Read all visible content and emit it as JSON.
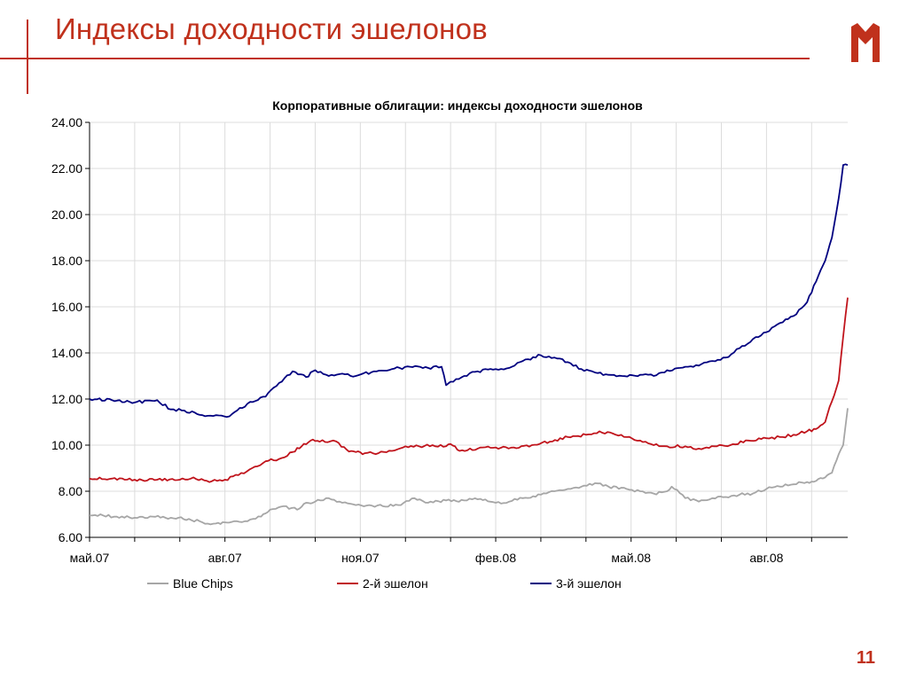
{
  "slide": {
    "title": "Индексы доходности эшелонов",
    "page_number": "11",
    "accent_color": "#c0311c",
    "logo": "m-logo-icon"
  },
  "chart_data": {
    "type": "line",
    "title": "Корпоративные облигации: индексы доходности эшелонов",
    "xlabel": "",
    "ylabel": "",
    "x_tick_labels": [
      "май.07",
      "авг.07",
      "ноя.07",
      "фев.08",
      "май.08",
      "авг.08"
    ],
    "y_tick_labels": [
      "6.00",
      "8.00",
      "10.00",
      "12.00",
      "14.00",
      "16.00",
      "18.00",
      "20.00",
      "22.00",
      "24.00"
    ],
    "ylim": [
      6,
      24
    ],
    "x_range_months": [
      0,
      16.8
    ],
    "grid": true,
    "legend_position": "bottom",
    "series": [
      {
        "name": "Blue Chips",
        "color": "#a6a6a6",
        "x": [
          0,
          0.3,
          0.6,
          1.0,
          1.4,
          1.8,
          2.2,
          2.5,
          2.8,
          3.0,
          3.2,
          3.5,
          3.8,
          4.0,
          4.3,
          4.6,
          4.8,
          5.0,
          5.3,
          5.6,
          5.9,
          6.2,
          6.5,
          6.9,
          7.2,
          7.5,
          7.9,
          8.3,
          8.6,
          9.0,
          9.3,
          9.6,
          10.0,
          10.3,
          10.6,
          10.9,
          11.2,
          11.5,
          11.9,
          12.2,
          12.5,
          12.8,
          12.9,
          13.2,
          13.5,
          13.8,
          14.1,
          14.4,
          14.7,
          15.0,
          15.3,
          15.6,
          15.9,
          16.1,
          16.3,
          16.45,
          16.6,
          16.7,
          16.8
        ],
        "values": [
          6.95,
          6.95,
          6.9,
          6.85,
          6.9,
          6.85,
          6.8,
          6.65,
          6.6,
          6.65,
          6.7,
          6.7,
          6.9,
          7.2,
          7.35,
          7.2,
          7.5,
          7.55,
          7.7,
          7.5,
          7.4,
          7.4,
          7.35,
          7.4,
          7.7,
          7.5,
          7.6,
          7.6,
          7.65,
          7.5,
          7.55,
          7.7,
          7.85,
          8.0,
          8.1,
          8.2,
          8.35,
          8.2,
          8.1,
          8.0,
          7.9,
          8.0,
          8.2,
          7.7,
          7.55,
          7.7,
          7.75,
          7.85,
          7.9,
          8.1,
          8.2,
          8.3,
          8.4,
          8.45,
          8.6,
          8.8,
          9.6,
          10.0,
          11.6
        ]
      },
      {
        "name": "2-й эшелон",
        "color": "#c0141c",
        "x": [
          0,
          0.5,
          1.0,
          1.5,
          2.0,
          2.3,
          2.6,
          3.0,
          3.3,
          3.6,
          3.9,
          4.2,
          4.5,
          4.7,
          4.9,
          5.1,
          5.4,
          5.7,
          5.9,
          6.1,
          6.4,
          6.7,
          7.0,
          7.3,
          7.6,
          7.9,
          8.0,
          8.2,
          8.6,
          9.0,
          9.4,
          9.8,
          10.2,
          10.6,
          11.0,
          11.3,
          11.6,
          11.9,
          12.2,
          12.5,
          12.8,
          13.2,
          13.5,
          13.9,
          14.2,
          14.6,
          15.0,
          15.3,
          15.6,
          15.9,
          16.1,
          16.3,
          16.45,
          16.6,
          16.7,
          16.8
        ],
        "values": [
          8.55,
          8.55,
          8.5,
          8.5,
          8.5,
          8.6,
          8.45,
          8.5,
          8.7,
          9.0,
          9.3,
          9.4,
          9.7,
          9.95,
          10.2,
          10.15,
          10.2,
          9.8,
          9.7,
          9.65,
          9.65,
          9.75,
          9.95,
          9.95,
          10.0,
          9.95,
          10.05,
          9.75,
          9.85,
          9.9,
          9.9,
          10.0,
          10.15,
          10.35,
          10.45,
          10.6,
          10.5,
          10.35,
          10.2,
          10.0,
          9.95,
          9.95,
          9.85,
          9.95,
          10.0,
          10.2,
          10.3,
          10.35,
          10.45,
          10.6,
          10.7,
          11.0,
          11.9,
          12.8,
          14.7,
          16.4
        ]
      },
      {
        "name": "3-й эшелон",
        "color": "#000080",
        "x": [
          0,
          0.5,
          1.0,
          1.5,
          1.8,
          2.1,
          2.5,
          2.8,
          3.1,
          3.5,
          3.9,
          4.2,
          4.5,
          4.8,
          5.0,
          5.3,
          5.6,
          5.9,
          6.3,
          6.7,
          7.1,
          7.5,
          7.8,
          7.9,
          8.0,
          8.3,
          8.6,
          9.0,
          9.3,
          9.6,
          10.0,
          10.3,
          10.6,
          10.9,
          11.2,
          11.5,
          11.8,
          12.2,
          12.5,
          12.8,
          13.2,
          13.5,
          13.8,
          14.1,
          14.4,
          14.7,
          15.0,
          15.3,
          15.6,
          15.9,
          16.1,
          16.3,
          16.45,
          16.6,
          16.7,
          16.8
        ],
        "values": [
          12.0,
          11.95,
          11.85,
          11.95,
          11.55,
          11.5,
          11.3,
          11.3,
          11.25,
          11.8,
          12.1,
          12.7,
          13.2,
          12.95,
          13.25,
          13.0,
          13.1,
          13.0,
          13.2,
          13.3,
          13.4,
          13.35,
          13.4,
          12.6,
          12.75,
          13.0,
          13.2,
          13.3,
          13.35,
          13.65,
          13.9,
          13.8,
          13.6,
          13.3,
          13.15,
          13.05,
          13.0,
          13.05,
          13.0,
          13.25,
          13.4,
          13.45,
          13.65,
          13.8,
          14.2,
          14.6,
          14.9,
          15.3,
          15.6,
          16.2,
          17.1,
          18.0,
          19.0,
          20.7,
          22.15,
          22.15
        ]
      }
    ]
  }
}
